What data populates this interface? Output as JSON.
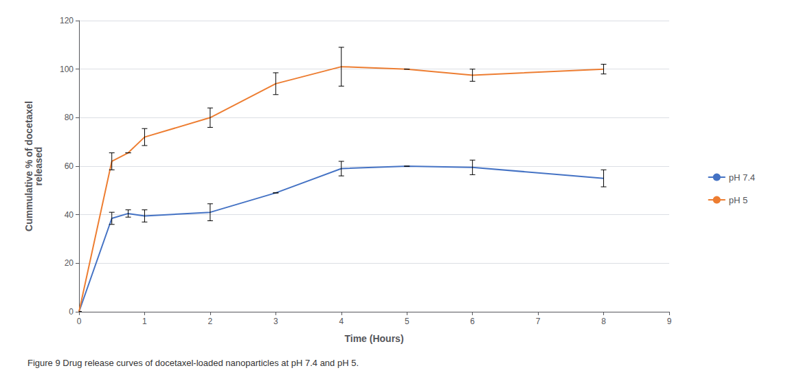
{
  "chart_data": {
    "type": "line",
    "xlabel": "Time (Hours)",
    "ylabel": "Cummulative % of docetaxel\nreleased",
    "caption": "Figure 9 Drug release curves of docetaxel-loaded nanoparticles at pH 7.4 and pH 5.",
    "xlim": [
      0,
      9
    ],
    "ylim": [
      0,
      120
    ],
    "xticks": [
      0,
      1,
      2,
      3,
      4,
      5,
      6,
      7,
      8,
      9
    ],
    "yticks": [
      0,
      20,
      40,
      60,
      80,
      100,
      120
    ],
    "grid": true,
    "legend": "right",
    "series": [
      {
        "name": "pH 7.4",
        "color": "#4472C4",
        "x": [
          0,
          0.5,
          0.75,
          1.0,
          2.0,
          3.0,
          4.0,
          5.0,
          6.0,
          8.0
        ],
        "values": [
          0,
          38.5,
          40.5,
          39.5,
          41.0,
          49.0,
          59.0,
          60.0,
          59.5,
          55.0
        ],
        "yerr": [
          0,
          2.5,
          1.5,
          2.5,
          3.5,
          0,
          3.0,
          0,
          3.0,
          3.5
        ]
      },
      {
        "name": "pH 5",
        "color": "#ED7D31",
        "x": [
          0,
          0.5,
          0.75,
          1.0,
          2.0,
          3.0,
          4.0,
          5.0,
          6.0,
          8.0
        ],
        "values": [
          0,
          62.0,
          65.5,
          72.0,
          80.0,
          94.0,
          101.0,
          100.0,
          97.5,
          100.0
        ],
        "yerr": [
          0,
          3.5,
          0,
          3.5,
          4.0,
          4.5,
          8.0,
          0,
          2.5,
          2.0
        ]
      }
    ]
  }
}
